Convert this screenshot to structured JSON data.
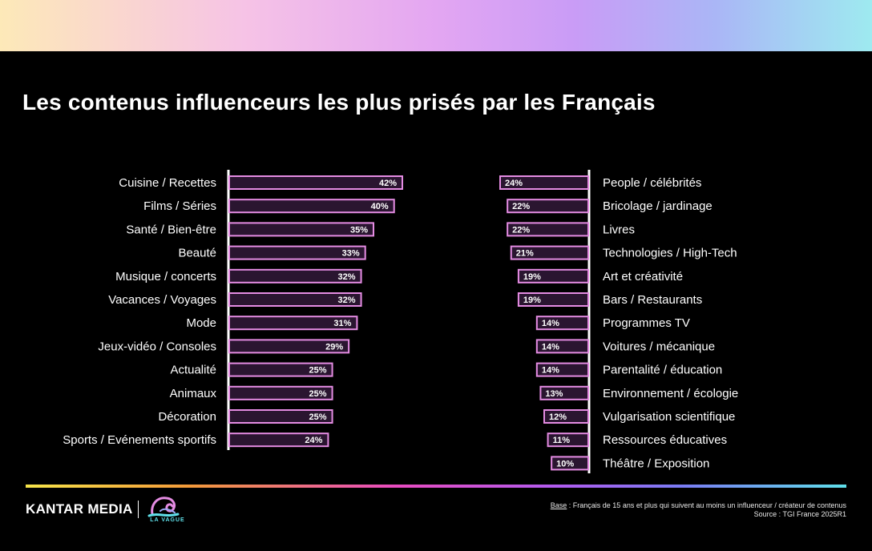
{
  "title": "Les contenus influenceurs les plus prisés par les Français",
  "colors": {
    "bar_fill": "#2a1530",
    "bar_stroke": "#e58ce3",
    "background": "#000000"
  },
  "chart_data": [
    {
      "type": "bar",
      "orientation": "horizontal",
      "direction": "left-to-right",
      "unit": "%",
      "xlim": [
        0,
        42
      ],
      "categories": [
        "Cuisine / Recettes",
        "Films / Séries",
        "Santé / Bien-être",
        "Beauté",
        "Musique / concerts",
        "Vacances / Voyages",
        "Mode",
        "Jeux-vidéo / Consoles",
        "Actualité",
        "Animaux",
        "Décoration",
        "Sports / Evénements sportifs"
      ],
      "values": [
        42,
        40,
        35,
        33,
        32,
        32,
        31,
        29,
        25,
        25,
        25,
        24
      ],
      "labels": [
        "42%",
        "40%",
        "35%",
        "33%",
        "32%",
        "32%",
        "31%",
        "29%",
        "25%",
        "25%",
        "25%",
        "24%"
      ]
    },
    {
      "type": "bar",
      "orientation": "horizontal",
      "direction": "right-to-left",
      "unit": "%",
      "xlim": [
        0,
        24
      ],
      "categories": [
        "People / célébrités",
        "Bricolage / jardinage",
        "Livres",
        "Technologies / High-Tech",
        "Art et créativité",
        "Bars / Restaurants",
        "Programmes TV",
        "Voitures / mécanique",
        "Parentalité / éducation",
        "Environnement / écologie",
        "Vulgarisation scientifique",
        "Ressources éducatives",
        "Théâtre / Exposition"
      ],
      "values": [
        24,
        22,
        22,
        21,
        19,
        19,
        14,
        14,
        14,
        13,
        12,
        11,
        10
      ],
      "labels": [
        "24%",
        "22%",
        "22%",
        "21%",
        "19%",
        "19%",
        "14%",
        "14%",
        "14%",
        "13%",
        "12%",
        "11%",
        "10%"
      ]
    }
  ],
  "footer": {
    "brand": "KANTAR MEDIA",
    "logo_text": "LA VAGUE",
    "logo_icon": "wave-icon",
    "base_label": "Base",
    "base_text": " : Français de 15 ans et plus qui suivent au moins un influenceur / créateur de contenus",
    "source": "Source : TGI France 2025R1"
  }
}
